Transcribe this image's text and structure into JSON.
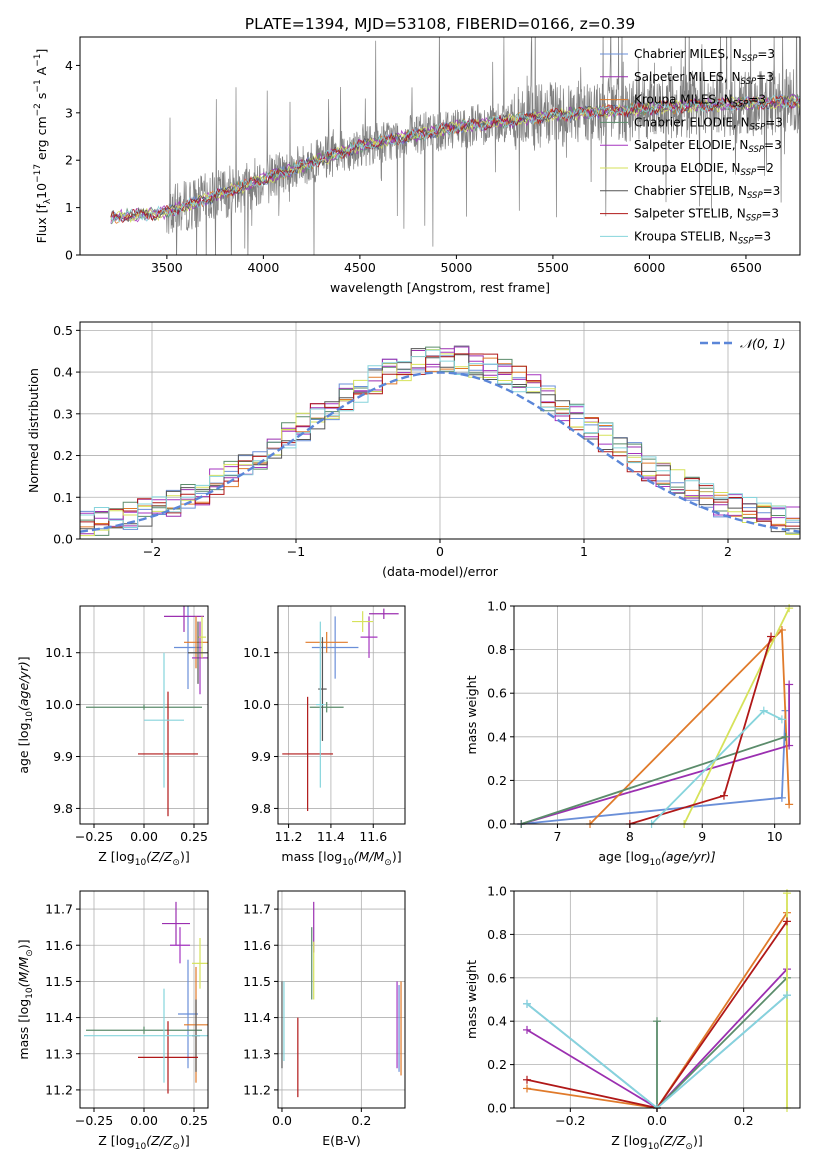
{
  "figure": {
    "title": "PLATE=1394, MJD=53108, FIBERID=0166, z=0.39"
  },
  "chart_data": [
    {
      "type": "line",
      "panel": "spectrum",
      "xlabel": "wavelength [Angstrom, rest frame]",
      "ylabel": "Flux [f_λ 10^-17 erg cm^-2 s^-1 A^-1]",
      "xlim": [
        3050,
        6780
      ],
      "ylim": [
        0,
        4.6
      ],
      "xticks": [
        3500,
        4000,
        4500,
        5000,
        5500,
        6000,
        6500
      ],
      "yticks": [
        0,
        1,
        2,
        3,
        4
      ],
      "grid": false,
      "legend_position": "top-right",
      "data_series": {
        "name": "observed spectrum",
        "color": "#808080",
        "x_range": [
          3210,
          6780
        ],
        "trend": [
          [
            3210,
            0.8
          ],
          [
            3500,
            0.9
          ],
          [
            4000,
            1.6
          ],
          [
            4500,
            2.3
          ],
          [
            5000,
            2.7
          ],
          [
            5500,
            2.95
          ],
          [
            6000,
            3.1
          ],
          [
            6500,
            3.2
          ],
          [
            6780,
            3.25
          ]
        ]
      },
      "series": [
        {
          "name": "Chabrier MILES, N_SSP=3",
          "label_main": "Chabrier MILES, N",
          "label_sub": "SSP",
          "label_tail": "=3",
          "color": "#6a8fd8"
        },
        {
          "name": "Salpeter MILES, N_SSP=3",
          "label_main": "Salpeter MILES, N",
          "label_sub": "SSP",
          "label_tail": "=3",
          "color": "#9b2fb0"
        },
        {
          "name": "Kroupa MILES, N_SSP=3",
          "label_main": "Kroupa MILES, N",
          "label_sub": "SSP",
          "label_tail": "=3",
          "color": "#e07a2a"
        },
        {
          "name": "Chabrier ELODIE, N_SSP=3",
          "label_main": "Chabrier ELODIE, N",
          "label_sub": "SSP",
          "label_tail": "=3",
          "color": "#5b8c6b"
        },
        {
          "name": "Salpeter ELODIE, N_SSP=3",
          "label_main": "Salpeter ELODIE, N",
          "label_sub": "SSP",
          "label_tail": "=3",
          "color": "#a535c0"
        },
        {
          "name": "Kroupa ELODIE, N_SSP=2",
          "label_main": "Kroupa ELODIE, N",
          "label_sub": "SSP",
          "label_tail": "=2",
          "color": "#d6e25a"
        },
        {
          "name": "Chabrier STELIB, N_SSP=3",
          "label_main": "Chabrier STELIB, N",
          "label_sub": "SSP",
          "label_tail": "=3",
          "color": "#555555"
        },
        {
          "name": "Salpeter STELIB, N_SSP=3",
          "label_main": "Salpeter STELIB, N",
          "label_sub": "SSP",
          "label_tail": "=3",
          "color": "#b01818"
        },
        {
          "name": "Kroupa STELIB, N_SSP=3",
          "label_main": "Kroupa STELIB, N",
          "label_sub": "SSP",
          "label_tail": "=3",
          "color": "#86d4dc"
        }
      ]
    },
    {
      "type": "line",
      "panel": "residuals",
      "xlabel": "(data-model)/error",
      "ylabel": "Normed distribution",
      "xlim": [
        -2.5,
        2.5
      ],
      "ylim": [
        0,
        0.52
      ],
      "xticks": [
        -2,
        -1,
        0,
        1,
        2
      ],
      "xtick_labels": [
        "−2",
        "−1",
        "0",
        "1",
        "2"
      ],
      "yticks": [
        0,
        0.1,
        0.2,
        0.3,
        0.4,
        0.5
      ],
      "ytick_labels": [
        "0.0",
        "0.1",
        "0.2",
        "0.3",
        "0.4",
        "0.5"
      ],
      "grid": true,
      "legend_position": "top-right",
      "reference": {
        "name": "N(0,1)",
        "label": "𝒩(0, 1)",
        "color": "#5b86d8",
        "style": "dashed",
        "mu": 0,
        "sigma": 1
      },
      "bin_width": 0.1,
      "histogram_shape": "approximately gaussian, peak ~0.42 near 0"
    },
    {
      "type": "scatter",
      "panel": "age-vs-metallicity",
      "xlabel": "Z [log10(Z/Z⊙)]",
      "xlabel_main": "Z [log",
      "xlabel_sub": "10",
      "xlabel_tail": "(Z/Z",
      "xlabel_end": ")]",
      "ylabel": "age [log10(age/yr)]",
      "xlim": [
        -0.32,
        0.32
      ],
      "ylim": [
        9.77,
        10.19
      ],
      "xticks": [
        -0.25,
        0.0,
        0.25
      ],
      "xtick_labels": [
        "−0.25",
        "0.00",
        "0.25"
      ],
      "yticks": [
        9.8,
        9.9,
        10.0,
        10.1
      ],
      "ytick_labels": [
        "9.8",
        "9.9",
        "10.0",
        "10.1"
      ],
      "points": [
        {
          "series": 0,
          "x": 0.22,
          "y": 10.11,
          "xerr": 0.07,
          "yerr": 0.08
        },
        {
          "series": 1,
          "x": 0.2,
          "y": 10.17,
          "xerr": 0.1,
          "yerr": 0.03
        },
        {
          "series": 2,
          "x": 0.26,
          "y": 10.12,
          "xerr": 0.06,
          "yerr": 0.05
        },
        {
          "series": 3,
          "x": 0.0,
          "y": 9.995,
          "xerr": 0.29,
          "yerr": 0.005
        },
        {
          "series": 4,
          "x": 0.28,
          "y": 10.09,
          "xerr": 0.04,
          "yerr": 0.07
        },
        {
          "series": 5,
          "x": 0.29,
          "y": 10.13,
          "xerr": 0.02,
          "yerr": 0.04
        },
        {
          "series": 6,
          "x": 0.27,
          "y": 10.1,
          "xerr": 0.05,
          "yerr": 0.06
        },
        {
          "series": 7,
          "x": 0.12,
          "y": 9.905,
          "xerr": 0.15,
          "yerr": 0.12
        },
        {
          "series": 8,
          "x": 0.1,
          "y": 9.97,
          "xerr": 0.1,
          "yerr": 0.13
        }
      ]
    },
    {
      "type": "scatter",
      "panel": "age-vs-mass",
      "xlabel": "mass [log10(M/M⊙)]",
      "xlabel_main": "mass [log",
      "xlabel_sub": "10",
      "xlabel_tail": "(M/M",
      "xlabel_end": ")]",
      "xlim": [
        11.15,
        11.75
      ],
      "ylim": [
        9.77,
        10.19
      ],
      "xticks": [
        11.2,
        11.4,
        11.6
      ],
      "xtick_labels": [
        "11.2",
        "11.4",
        "11.6"
      ],
      "yticks": [
        9.8,
        9.9,
        10.0,
        10.1
      ],
      "ytick_labels": [
        "9.8",
        "9.9",
        "10.0",
        "10.1"
      ],
      "points": [
        {
          "series": 0,
          "x": 11.42,
          "y": 10.11,
          "xerr": 0.11,
          "yerr": 0.06
        },
        {
          "series": 1,
          "x": 11.65,
          "y": 10.175,
          "xerr": 0.07,
          "yerr": 0.01
        },
        {
          "series": 2,
          "x": 11.38,
          "y": 10.12,
          "xerr": 0.1,
          "yerr": 0.02
        },
        {
          "series": 3,
          "x": 11.38,
          "y": 9.995,
          "xerr": 0.08,
          "yerr": 0.01
        },
        {
          "series": 4,
          "x": 11.58,
          "y": 10.13,
          "xerr": 0.04,
          "yerr": 0.04
        },
        {
          "series": 5,
          "x": 11.55,
          "y": 10.16,
          "xerr": 0.05,
          "yerr": 0.02
        },
        {
          "series": 6,
          "x": 11.36,
          "y": 10.03,
          "xerr": 0.02,
          "yerr": 0.1
        },
        {
          "series": 7,
          "x": 11.29,
          "y": 9.905,
          "xerr": 0.12,
          "yerr": 0.11
        },
        {
          "series": 8,
          "x": 11.35,
          "y": 10.0,
          "xerr": 0.02,
          "yerr": 0.16
        }
      ]
    },
    {
      "type": "line",
      "panel": "mass-weight-vs-age",
      "xlabel": "age [log10(age/yr)]",
      "xlabel_main": "age  [log",
      "xlabel_sub": "10",
      "xlabel_tail": "(age/yr)]",
      "ylabel": "mass weight",
      "xlim": [
        6.4,
        10.35
      ],
      "ylim": [
        0,
        1.0
      ],
      "xticks": [
        7,
        8,
        9,
        10
      ],
      "yticks": [
        0,
        0.2,
        0.4,
        0.6,
        0.8,
        1.0
      ],
      "ytick_labels": [
        "0.0",
        "0.2",
        "0.4",
        "0.6",
        "0.8",
        "1.0"
      ],
      "lines": [
        {
          "series": 0,
          "x": [
            6.5,
            10.1,
            10.15
          ],
          "y": [
            0.0,
            0.12,
            0.52
          ]
        },
        {
          "series": 1,
          "x": [
            6.5,
            10.2,
            10.2
          ],
          "y": [
            0.0,
            0.36,
            0.64
          ]
        },
        {
          "series": 2,
          "x": [
            7.45,
            10.1,
            10.2
          ],
          "y": [
            0.0,
            0.89,
            0.09
          ]
        },
        {
          "series": 3,
          "x": [
            6.5,
            10.15
          ],
          "y": [
            0.0,
            0.4
          ]
        },
        {
          "series": 5,
          "x": [
            8.75,
            10.2
          ],
          "y": [
            0.0,
            0.99
          ]
        },
        {
          "series": 7,
          "x": [
            8.0,
            9.3,
            9.95
          ],
          "y": [
            0.0,
            0.13,
            0.86
          ]
        },
        {
          "series": 8,
          "x": [
            8.3,
            9.85,
            10.1
          ],
          "y": [
            0.0,
            0.52,
            0.48
          ]
        }
      ]
    },
    {
      "type": "scatter",
      "panel": "mass-vs-metallicity",
      "xlabel": "Z [log10(Z/Z⊙)]",
      "xlabel_main": "Z [log",
      "xlabel_sub": "10",
      "xlabel_tail": "(Z/Z",
      "xlabel_end": ")]",
      "ylabel": "mass [log10(M/M⊙)]",
      "xlim": [
        -0.32,
        0.32
      ],
      "ylim": [
        11.15,
        11.75
      ],
      "xticks": [
        -0.25,
        0.0,
        0.25
      ],
      "xtick_labels": [
        "−0.25",
        "0.00",
        "0.25"
      ],
      "yticks": [
        11.2,
        11.3,
        11.4,
        11.5,
        11.6,
        11.7
      ],
      "ytick_labels": [
        "11.2",
        "11.3",
        "11.4",
        "11.5",
        "11.6",
        "11.7"
      ],
      "points": [
        {
          "series": 0,
          "x": 0.22,
          "y": 11.41,
          "xerr": 0.05,
          "yerr": 0.15
        },
        {
          "series": 1,
          "x": 0.16,
          "y": 11.66,
          "xerr": 0.07,
          "yerr": 0.06
        },
        {
          "series": 2,
          "x": 0.26,
          "y": 11.38,
          "xerr": 0.06,
          "yerr": 0.16
        },
        {
          "series": 3,
          "x": 0.0,
          "y": 11.365,
          "xerr": 0.29,
          "yerr": 0.01
        },
        {
          "series": 4,
          "x": 0.18,
          "y": 11.6,
          "xerr": 0.05,
          "yerr": 0.05
        },
        {
          "series": 5,
          "x": 0.28,
          "y": 11.55,
          "xerr": 0.04,
          "yerr": 0.07
        },
        {
          "series": 6,
          "x": 0.26,
          "y": 11.35,
          "xerr": 0.02,
          "yerr": 0.1
        },
        {
          "series": 7,
          "x": 0.12,
          "y": 11.29,
          "xerr": 0.15,
          "yerr": 0.1
        },
        {
          "series": 8,
          "x": 0.1,
          "y": 11.35,
          "xerr": 0.4,
          "yerr": 0.13
        }
      ]
    },
    {
      "type": "scatter",
      "panel": "mass-vs-ebv",
      "xlabel": "E(B-V)",
      "xlim": [
        -0.01,
        0.31
      ],
      "ylim": [
        11.15,
        11.75
      ],
      "xticks": [
        0.0,
        0.2
      ],
      "xtick_labels": [
        "0.0",
        "0.2"
      ],
      "yticks": [
        11.2,
        11.3,
        11.4,
        11.5,
        11.6,
        11.7
      ],
      "ytick_labels": [
        "11.2",
        "11.3",
        "11.4",
        "11.5",
        "11.6",
        "11.7"
      ],
      "points": [
        {
          "series": 0,
          "x": 0.295,
          "y": 11.37,
          "xerr": 0.0,
          "yerr": 0.12
        },
        {
          "series": 1,
          "x": 0.08,
          "y": 11.65,
          "xerr": 0.0,
          "yerr": 0.07
        },
        {
          "series": 2,
          "x": 0.3,
          "y": 11.37,
          "xerr": 0.0,
          "yerr": 0.13
        },
        {
          "series": 3,
          "x": 0.075,
          "y": 11.55,
          "xerr": 0.0,
          "yerr": 0.1
        },
        {
          "series": 4,
          "x": 0.29,
          "y": 11.38,
          "xerr": 0.0,
          "yerr": 0.12
        },
        {
          "series": 5,
          "x": 0.08,
          "y": 11.53,
          "xerr": 0.0,
          "yerr": 0.08
        },
        {
          "series": 6,
          "x": 0.0,
          "y": 11.38,
          "xerr": 0.0,
          "yerr": 0.12
        },
        {
          "series": 7,
          "x": 0.04,
          "y": 11.29,
          "xerr": 0.0,
          "yerr": 0.11
        },
        {
          "series": 8,
          "x": 0.005,
          "y": 11.39,
          "xerr": 0.0,
          "yerr": 0.11
        }
      ]
    },
    {
      "type": "line",
      "panel": "mass-weight-vs-metallicity",
      "xlabel": "Z [log10(Z/Z⊙)]",
      "xlabel_main": "Z [log",
      "xlabel_sub": "10",
      "xlabel_tail": "(Z/Z",
      "xlabel_end": ")]",
      "ylabel": "mass weight",
      "xlim": [
        -0.33,
        0.33
      ],
      "ylim": [
        0,
        1.0
      ],
      "xticks": [
        -0.2,
        0.0,
        0.2
      ],
      "xtick_labels": [
        "−0.2",
        "0.0",
        "0.2"
      ],
      "yticks": [
        0,
        0.2,
        0.4,
        0.6,
        0.8,
        1.0
      ],
      "ytick_labels": [
        "0.0",
        "0.2",
        "0.4",
        "0.6",
        "0.8",
        "1.0"
      ],
      "lines": [
        {
          "series": 0,
          "x": [
            -0.3,
            0.0,
            0.3
          ],
          "y": [
            0.48,
            0.0,
            0.52
          ]
        },
        {
          "series": 1,
          "x": [
            -0.3,
            0.0,
            0.3
          ],
          "y": [
            0.36,
            0.0,
            0.64
          ]
        },
        {
          "series": 2,
          "x": [
            -0.3,
            0.0,
            0.3
          ],
          "y": [
            0.09,
            0.0,
            0.9
          ]
        },
        {
          "series": 3,
          "x": [
            0.0,
            0.0,
            0.3
          ],
          "y": [
            0.4,
            0.0,
            0.6
          ]
        },
        {
          "series": 5,
          "x": [
            0.3,
            0.3
          ],
          "y": [
            0.0,
            0.99
          ]
        },
        {
          "series": 7,
          "x": [
            -0.3,
            0.0,
            0.3
          ],
          "y": [
            0.13,
            0.0,
            0.86
          ]
        },
        {
          "series": 8,
          "x": [
            -0.3,
            0.0,
            0.3
          ],
          "y": [
            0.48,
            0.0,
            0.52
          ]
        }
      ]
    }
  ]
}
